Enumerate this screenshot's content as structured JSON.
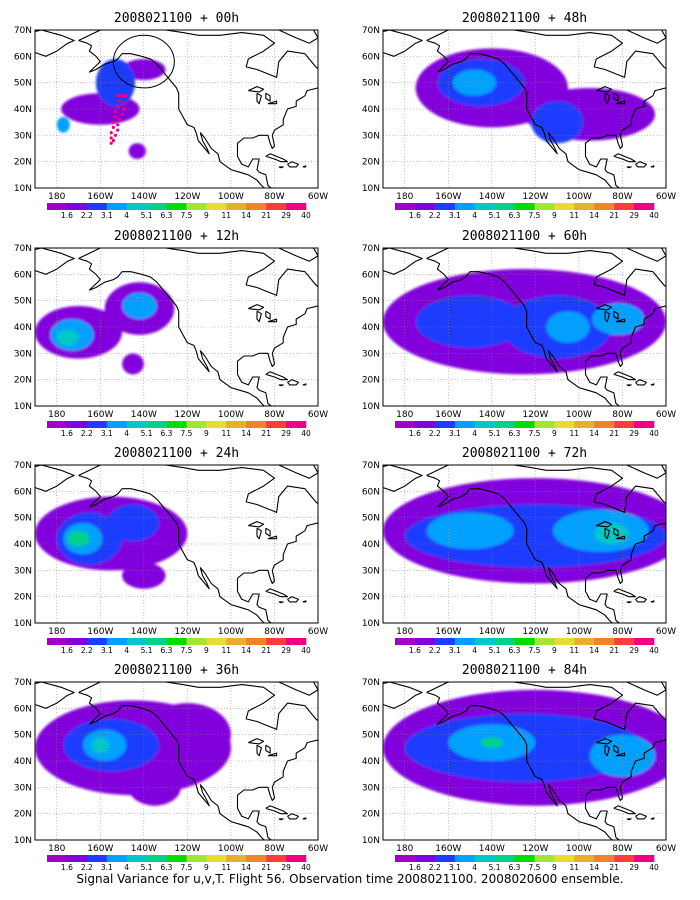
{
  "caption": "Signal Variance for u,v,T. Flight 56. Observation time 2008021100. 2008020600 ensemble.",
  "colors": {
    "levels": [
      "#a000c8",
      "#8200dc",
      "#1e3cff",
      "#00a0ff",
      "#00c8c8",
      "#00d28c",
      "#00dc00",
      "#a0e632",
      "#e6dc32",
      "#e6af2d",
      "#f08228",
      "#fa3c3c",
      "#f00082"
    ],
    "land": "#000000",
    "grid": "#888888",
    "flight_track": "#f0007a"
  },
  "colorbar": {
    "labels": [
      "1.6",
      "2.2",
      "3.1",
      "4",
      "5.1",
      "6.3",
      "7.5",
      "9",
      "11",
      "14",
      "21",
      "29",
      "40"
    ]
  },
  "axes": {
    "lon_ticks": [
      "180",
      "160W",
      "140W",
      "120W",
      "100W",
      "80W",
      "60W"
    ],
    "lat_ticks": [
      "10N",
      "20N",
      "30N",
      "40N",
      "50N",
      "60N",
      "70N"
    ]
  },
  "panels": [
    {
      "title": "2008021100 + 00h",
      "blobs": [
        {
          "lon": -160,
          "lat": 40,
          "rlon": 18,
          "rlat": 6,
          "v": 1
        },
        {
          "lon": -153,
          "lat": 50,
          "rlon": 9,
          "rlat": 9,
          "v": 2
        },
        {
          "lon": -140,
          "lat": 55,
          "rlon": 10,
          "rlat": 4,
          "v": 1
        },
        {
          "lon": -177,
          "lat": 34,
          "rlon": 3,
          "rlat": 3,
          "v": 3
        },
        {
          "lon": -143,
          "lat": 24,
          "rlon": 4,
          "rlat": 3,
          "v": 1
        }
      ]
    },
    {
      "title": "2008021100 + 48h",
      "blobs": [
        {
          "lon": -140,
          "lat": 48,
          "rlon": 35,
          "rlat": 15,
          "v": 1
        },
        {
          "lon": -145,
          "lat": 50,
          "rlon": 20,
          "rlat": 9,
          "v": 2
        },
        {
          "lon": -148,
          "lat": 50,
          "rlon": 10,
          "rlat": 5,
          "v": 3
        },
        {
          "lon": -95,
          "lat": 38,
          "rlon": 30,
          "rlat": 10,
          "v": 1
        },
        {
          "lon": -110,
          "lat": 35,
          "rlon": 12,
          "rlat": 8,
          "v": 2
        }
      ]
    },
    {
      "title": "2008021100 + 12h",
      "blobs": [
        {
          "lon": -170,
          "lat": 38,
          "rlon": 20,
          "rlat": 10,
          "v": 1
        },
        {
          "lon": -173,
          "lat": 37,
          "rlon": 10,
          "rlat": 6,
          "v": 3
        },
        {
          "lon": -175,
          "lat": 36,
          "rlon": 5,
          "rlat": 3,
          "v": 4
        },
        {
          "lon": -142,
          "lat": 47,
          "rlon": 16,
          "rlat": 10,
          "v": 1
        },
        {
          "lon": -142,
          "lat": 48,
          "rlon": 8,
          "rlat": 5,
          "v": 3
        },
        {
          "lon": -145,
          "lat": 26,
          "rlon": 5,
          "rlat": 4,
          "v": 1
        }
      ]
    },
    {
      "title": "2008021100 + 60h",
      "blobs": [
        {
          "lon": -125,
          "lat": 42,
          "rlon": 65,
          "rlat": 20,
          "v": 1
        },
        {
          "lon": -150,
          "lat": 42,
          "rlon": 25,
          "rlat": 10,
          "v": 2
        },
        {
          "lon": -110,
          "lat": 40,
          "rlon": 25,
          "rlat": 12,
          "v": 2
        },
        {
          "lon": -105,
          "lat": 40,
          "rlon": 10,
          "rlat": 6,
          "v": 3
        },
        {
          "lon": -82,
          "lat": 43,
          "rlon": 12,
          "rlat": 6,
          "v": 3
        }
      ]
    },
    {
      "title": "2008021100 + 24h",
      "blobs": [
        {
          "lon": -155,
          "lat": 44,
          "rlon": 35,
          "rlat": 14,
          "v": 1
        },
        {
          "lon": -165,
          "lat": 42,
          "rlon": 15,
          "rlat": 10,
          "v": 2
        },
        {
          "lon": -168,
          "lat": 42,
          "rlon": 9,
          "rlat": 6,
          "v": 3
        },
        {
          "lon": -170,
          "lat": 42,
          "rlon": 5,
          "rlat": 3,
          "v": 5
        },
        {
          "lon": -145,
          "lat": 48,
          "rlon": 12,
          "rlat": 7,
          "v": 2
        },
        {
          "lon": -140,
          "lat": 28,
          "rlon": 10,
          "rlat": 5,
          "v": 1
        }
      ]
    },
    {
      "title": "2008021100 + 72h",
      "blobs": [
        {
          "lon": -120,
          "lat": 45,
          "rlon": 70,
          "rlat": 20,
          "v": 1
        },
        {
          "lon": -120,
          "lat": 43,
          "rlon": 60,
          "rlat": 12,
          "v": 2
        },
        {
          "lon": -150,
          "lat": 45,
          "rlon": 20,
          "rlat": 7,
          "v": 3
        },
        {
          "lon": -90,
          "lat": 45,
          "rlon": 22,
          "rlat": 8,
          "v": 3
        },
        {
          "lon": -85,
          "lat": 44,
          "rlon": 8,
          "rlat": 4,
          "v": 4
        }
      ]
    },
    {
      "title": "2008021100 + 36h",
      "blobs": [
        {
          "lon": -145,
          "lat": 45,
          "rlon": 45,
          "rlat": 18,
          "v": 1
        },
        {
          "lon": -155,
          "lat": 46,
          "rlon": 22,
          "rlat": 10,
          "v": 2
        },
        {
          "lon": -158,
          "lat": 46,
          "rlon": 10,
          "rlat": 6,
          "v": 3
        },
        {
          "lon": -160,
          "lat": 46,
          "rlon": 4,
          "rlat": 3,
          "v": 4
        },
        {
          "lon": -120,
          "lat": 50,
          "rlon": 20,
          "rlat": 12,
          "v": 1
        },
        {
          "lon": -135,
          "lat": 30,
          "rlon": 12,
          "rlat": 7,
          "v": 1
        }
      ]
    },
    {
      "title": "2008021100 + 84h",
      "blobs": [
        {
          "lon": -120,
          "lat": 45,
          "rlon": 70,
          "rlat": 22,
          "v": 1
        },
        {
          "lon": -125,
          "lat": 45,
          "rlon": 55,
          "rlat": 13,
          "v": 2
        },
        {
          "lon": -140,
          "lat": 47,
          "rlon": 20,
          "rlat": 7,
          "v": 3
        },
        {
          "lon": -140,
          "lat": 47,
          "rlon": 5,
          "rlat": 2,
          "v": 5
        },
        {
          "lon": -80,
          "lat": 42,
          "rlon": 15,
          "rlat": 8,
          "v": 3
        }
      ]
    }
  ],
  "overlays": {
    "panel0_circle": {
      "lon": -140,
      "lat": 58,
      "rlon": 14,
      "rlat": 10
    },
    "panel0_track": [
      [
        -152,
        45
      ],
      [
        -151,
        45
      ],
      [
        -150,
        45
      ],
      [
        -149,
        45
      ],
      [
        -148,
        45
      ],
      [
        -151,
        43
      ],
      [
        -149,
        42
      ],
      [
        -152,
        41
      ],
      [
        -149,
        40
      ],
      [
        -153,
        39
      ],
      [
        -150,
        38
      ],
      [
        -153,
        37
      ],
      [
        -151,
        36
      ],
      [
        -154,
        35
      ],
      [
        -152,
        34
      ],
      [
        -154,
        33
      ],
      [
        -152,
        32
      ],
      [
        -155,
        31
      ],
      [
        -153,
        30
      ],
      [
        -155,
        29
      ],
      [
        -154,
        28
      ],
      [
        -155,
        27
      ]
    ]
  }
}
